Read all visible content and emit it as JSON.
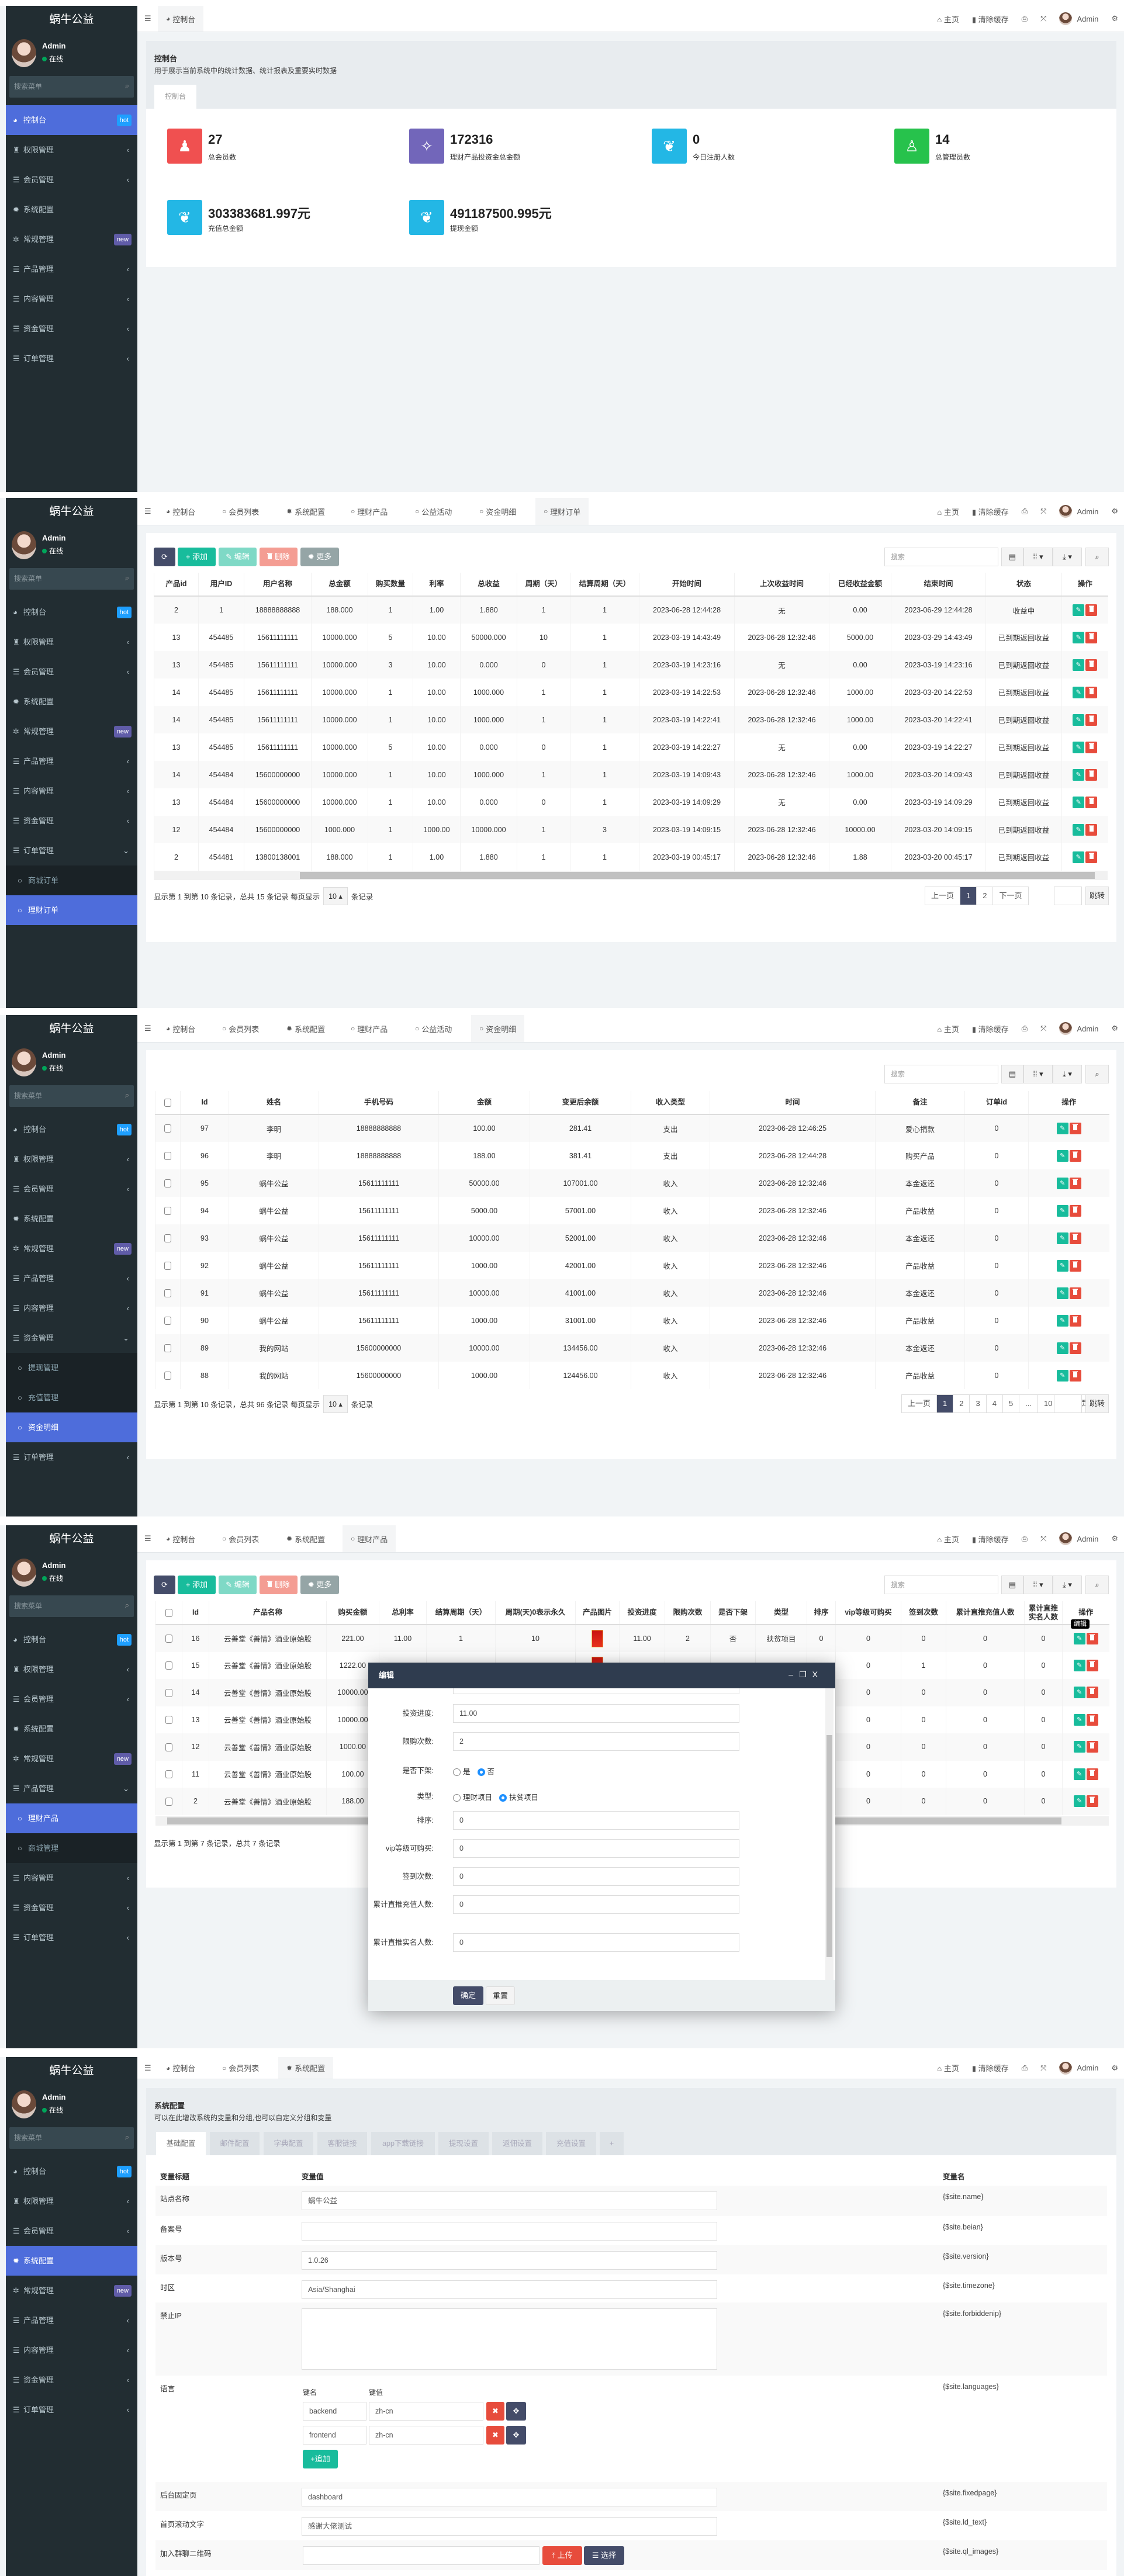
{
  "app": {
    "logo": "蜗牛公益",
    "user_name": "Admin",
    "user_status": "在线",
    "search_placeholder": "搜索菜单",
    "menu": [
      {
        "label": "控制台",
        "icon": "dashboard",
        "badge": "hot",
        "badge_color": "#1e9fff"
      },
      {
        "label": "权限管理",
        "icon": "group"
      },
      {
        "label": "会员管理",
        "icon": "list"
      },
      {
        "label": "系统配置",
        "icon": "gear",
        "nochev": true
      },
      {
        "label": "常规管理",
        "icon": "cogs",
        "badge": "new",
        "badge_color": "#605ca8"
      },
      {
        "label": "产品管理",
        "icon": "list",
        "children": [
          {
            "label": "理财产品"
          },
          {
            "label": "商城管理"
          }
        ]
      },
      {
        "label": "内容管理",
        "icon": "list"
      },
      {
        "label": "资金管理",
        "icon": "list",
        "children": [
          {
            "label": "提现管理"
          },
          {
            "label": "充值管理"
          },
          {
            "label": "资金明细"
          }
        ]
      },
      {
        "label": "订单管理",
        "icon": "list",
        "children": [
          {
            "label": "商城订单"
          },
          {
            "label": "理财订单"
          }
        ]
      }
    ],
    "tabs": [
      {
        "label": "控制台",
        "icon": "dashboard"
      },
      {
        "label": "会员列表",
        "icon": "circle"
      },
      {
        "label": "系统配置",
        "icon": "gear"
      },
      {
        "label": "理财产品",
        "icon": "circle"
      },
      {
        "label": "公益活动",
        "icon": "circle"
      },
      {
        "label": "资金明细",
        "icon": "circle"
      },
      {
        "label": "理财订单",
        "icon": "circle"
      }
    ],
    "topbar": {
      "home": "主页",
      "clear_cache": "清除缓存",
      "admin": "Admin"
    },
    "toolbar": {
      "add": "添加",
      "edit": "编辑",
      "delete": "删除",
      "more": "更多",
      "search_placeholder": "搜索"
    },
    "colors": {
      "sidebar": "#222d32",
      "active": "#4e6ddb",
      "primary": "#444c69",
      "success": "#18bc9c",
      "danger": "#e74c3c"
    }
  },
  "panels": [
    {
      "state": {
        "active": "0",
        "expanded": -1,
        "tabs": [
          0
        ],
        "active_tab": 0
      },
      "dashboard": {
        "title": "控制台",
        "desc": "用于展示当前系统中的统计数据、统计报表及重要实时数据",
        "tab": "控制台",
        "stats": [
          {
            "value": "27",
            "label": "总会员数",
            "color": "#f05050",
            "icon": "users"
          },
          {
            "value": "172316",
            "label": "理财产品投资金总金额",
            "color": "#7266ba",
            "icon": "magic"
          },
          {
            "value": "0",
            "label": "今日注册人数",
            "color": "#23b7e5",
            "icon": "leaf"
          },
          {
            "value": "14",
            "label": "总管理员数",
            "color": "#27c24c",
            "icon": "user"
          },
          {
            "value": "303383681.997元",
            "label": "充值总金额",
            "color": "#23b7e5",
            "icon": "leaf"
          },
          {
            "value": "491187500.995元",
            "label": "提现金额",
            "color": "#23b7e5",
            "icon": "leaf"
          }
        ]
      }
    },
    {
      "state": {
        "active": "8.1",
        "expanded": 8,
        "tabs": [
          0,
          1,
          2,
          3,
          4,
          5,
          6
        ],
        "active_tab": 6
      },
      "table": {
        "headers": [
          "产品id",
          "用户ID",
          "用户名称",
          "总金额",
          "购买数量",
          "利率",
          "总收益",
          "周期（天）",
          "结算周期（天）",
          "开始时间",
          "上次收益时间",
          "已经收益金额",
          "结束时间",
          "状态",
          "操作"
        ],
        "rows": [
          [
            "2",
            "1",
            "18888888888",
            "188.000",
            "1",
            "1.00",
            "1.880",
            "1",
            "1",
            "2023-06-28 12:44:28",
            "无",
            "0.00",
            "2023-06-29 12:44:28",
            "收益中"
          ],
          [
            "13",
            "454485",
            "15611111111",
            "10000.000",
            "5",
            "10.00",
            "50000.000",
            "10",
            "1",
            "2023-03-19 14:43:49",
            "2023-06-28 12:32:46",
            "5000.00",
            "2023-03-29 14:43:49",
            "已到期返回收益"
          ],
          [
            "13",
            "454485",
            "15611111111",
            "10000.000",
            "3",
            "10.00",
            "0.000",
            "0",
            "1",
            "2023-03-19 14:23:16",
            "无",
            "0.00",
            "2023-03-19 14:23:16",
            "已到期返回收益"
          ],
          [
            "14",
            "454485",
            "15611111111",
            "10000.000",
            "1",
            "10.00",
            "1000.000",
            "1",
            "1",
            "2023-03-19 14:22:53",
            "2023-06-28 12:32:46",
            "1000.00",
            "2023-03-20 14:22:53",
            "已到期返回收益"
          ],
          [
            "14",
            "454485",
            "15611111111",
            "10000.000",
            "1",
            "10.00",
            "1000.000",
            "1",
            "1",
            "2023-03-19 14:22:41",
            "2023-06-28 12:32:46",
            "1000.00",
            "2023-03-20 14:22:41",
            "已到期返回收益"
          ],
          [
            "13",
            "454485",
            "15611111111",
            "10000.000",
            "5",
            "10.00",
            "0.000",
            "0",
            "1",
            "2023-03-19 14:22:27",
            "无",
            "0.00",
            "2023-03-19 14:22:27",
            "已到期返回收益"
          ],
          [
            "14",
            "454484",
            "15600000000",
            "10000.000",
            "1",
            "10.00",
            "1000.000",
            "1",
            "1",
            "2023-03-19 14:09:43",
            "2023-06-28 12:32:46",
            "1000.00",
            "2023-03-20 14:09:43",
            "已到期返回收益"
          ],
          [
            "13",
            "454484",
            "15600000000",
            "10000.000",
            "1",
            "10.00",
            "0.000",
            "0",
            "1",
            "2023-03-19 14:09:29",
            "无",
            "0.00",
            "2023-03-19 14:09:29",
            "已到期返回收益"
          ],
          [
            "12",
            "454484",
            "15600000000",
            "1000.000",
            "1",
            "1000.00",
            "10000.000",
            "1",
            "3",
            "2023-03-19 14:09:15",
            "2023-06-28 12:32:46",
            "10000.00",
            "2023-03-20 14:09:15",
            "已到期返回收益"
          ],
          [
            "2",
            "454481",
            "13800138001",
            "188.000",
            "1",
            "1.00",
            "1.880",
            "1",
            "1",
            "2023-03-19 00:45:17",
            "2023-06-28 12:32:46",
            "1.88",
            "2023-03-20 00:45:17",
            "已到期返回收益"
          ]
        ]
      },
      "pagination": {
        "info": "显示第 1 到第 10 条记录，总共 15 条记录 每页显示",
        "page_size": "10 ▴",
        "suffix": "条记录",
        "pages": [
          "上一页",
          "1",
          "2",
          "下一页"
        ],
        "current": "1",
        "jump": "跳转"
      }
    },
    {
      "state": {
        "active": "7.2",
        "expanded": 7,
        "tabs": [
          0,
          1,
          2,
          3,
          4,
          5
        ],
        "active_tab": 5
      },
      "table": {
        "headers": [
          "Id",
          "姓名",
          "手机号码",
          "金额",
          "变更后余额",
          "收入类型",
          "时间",
          "备注",
          "订单id",
          "操作"
        ],
        "rows": [
          [
            "97",
            "李明",
            "18888888888",
            "100.00",
            "281.41",
            "支出",
            "2023-06-28 12:46:25",
            "爱心捐款",
            "0"
          ],
          [
            "96",
            "李明",
            "18888888888",
            "188.00",
            "381.41",
            "支出",
            "2023-06-28 12:44:28",
            "购买产品",
            "0"
          ],
          [
            "95",
            "蜗牛公益",
            "15611111111",
            "50000.00",
            "107001.00",
            "收入",
            "2023-06-28 12:32:46",
            "本金返还",
            "0"
          ],
          [
            "94",
            "蜗牛公益",
            "15611111111",
            "5000.00",
            "57001.00",
            "收入",
            "2023-06-28 12:32:46",
            "产品收益",
            "0"
          ],
          [
            "93",
            "蜗牛公益",
            "15611111111",
            "10000.00",
            "52001.00",
            "收入",
            "2023-06-28 12:32:46",
            "本金返还",
            "0"
          ],
          [
            "92",
            "蜗牛公益",
            "15611111111",
            "1000.00",
            "42001.00",
            "收入",
            "2023-06-28 12:32:46",
            "产品收益",
            "0"
          ],
          [
            "91",
            "蜗牛公益",
            "15611111111",
            "10000.00",
            "41001.00",
            "收入",
            "2023-06-28 12:32:46",
            "本金返还",
            "0"
          ],
          [
            "90",
            "蜗牛公益",
            "15611111111",
            "1000.00",
            "31001.00",
            "收入",
            "2023-06-28 12:32:46",
            "产品收益",
            "0"
          ],
          [
            "89",
            "我的网站",
            "15600000000",
            "10000.00",
            "134456.00",
            "收入",
            "2023-06-28 12:32:46",
            "本金返还",
            "0"
          ],
          [
            "88",
            "我的网站",
            "15600000000",
            "1000.00",
            "124456.00",
            "收入",
            "2023-06-28 12:32:46",
            "产品收益",
            "0"
          ]
        ]
      },
      "pagination": {
        "info": "显示第 1 到第 10 条记录，总共 96 条记录 每页显示",
        "page_size": "10 ▴",
        "suffix": "条记录",
        "pages": [
          "上一页",
          "1",
          "2",
          "3",
          "4",
          "5",
          "...",
          "10",
          "下一页"
        ],
        "current": "1",
        "jump": "跳转"
      }
    },
    {
      "state": {
        "active": "5.0",
        "expanded": 5,
        "tabs": [
          0,
          1,
          2,
          3
        ],
        "active_tab": 3
      },
      "table": {
        "headers": [
          "Id",
          "产品名称",
          "购买金额",
          "总利率",
          "结算周期（天）",
          "周期(天)0表示永久",
          "产品图片",
          "投资进度",
          "限购次数",
          "是否下架",
          "类型",
          "排序",
          "vip等级可购买",
          "签到次数",
          "累计直推充值人数",
          "累计直推实名人数",
          "操作"
        ],
        "rows": [
          [
            "16",
            "云善堂《善情》酒业原始股",
            "221.00",
            "11.00",
            "1",
            "10",
            "",
            "11.00",
            "2",
            "否",
            "扶贫项目",
            "0",
            "0",
            "0",
            "0",
            "0"
          ],
          [
            "15",
            "云善堂《善情》酒业原始股",
            "1222.00",
            "",
            "",
            "",
            "",
            "",
            "",
            "",
            "",
            "",
            "0",
            "1",
            "0",
            "0"
          ],
          [
            "14",
            "云善堂《善情》酒业原始股",
            "10000.00",
            "",
            "",
            "",
            "",
            "",
            "",
            "",
            "",
            "",
            "0",
            "0",
            "0",
            "0"
          ],
          [
            "13",
            "云善堂《善情》酒业原始股",
            "10000.00",
            "",
            "",
            "",
            "",
            "",
            "",
            "",
            "",
            "",
            "0",
            "0",
            "0",
            "0"
          ],
          [
            "12",
            "云善堂《善情》酒业原始股",
            "1000.00",
            "",
            "",
            "",
            "",
            "",
            "",
            "",
            "",
            "",
            "0",
            "0",
            "0",
            "0"
          ],
          [
            "11",
            "云善堂《善情》酒业原始股",
            "100.00",
            "",
            "",
            "",
            "",
            "",
            "",
            "",
            "",
            "",
            "0",
            "0",
            "0",
            "0"
          ],
          [
            "2",
            "云善堂《善情》酒业原始股",
            "188.00",
            "",
            "",
            "",
            "",
            "",
            "",
            "",
            "",
            "",
            "0",
            "0",
            "0",
            "0"
          ]
        ]
      },
      "footer": "显示第 1 到第 7 条记录，总共 7 条记录",
      "tooltip": "编辑",
      "modal": {
        "title": "编辑",
        "fields": [
          {
            "label": "投资进度:",
            "value": "11.00"
          },
          {
            "label": "限购次数:",
            "value": "2"
          },
          {
            "label": "是否下架:",
            "options": [
              "是",
              "否"
            ],
            "selected": 1
          },
          {
            "label": "类型:",
            "options": [
              "理财项目",
              "扶贫项目"
            ],
            "selected": 1
          },
          {
            "label": "排序:",
            "value": "0"
          },
          {
            "label": "vip等级可购买:",
            "value": "0"
          },
          {
            "label": "签到次数:",
            "value": "0"
          },
          {
            "label": "累计直推充值人数:",
            "value": "0"
          },
          {
            "label": "累计直推实名人数:",
            "value": "0"
          }
        ],
        "confirm": "确定",
        "reset": "重置"
      }
    },
    {
      "state": {
        "active": "3",
        "expanded": -1,
        "tabs": [
          0,
          1,
          2
        ],
        "active_tab": 2
      },
      "config": {
        "title": "系统配置",
        "desc": "可以在此增改系统的变量和分组,也可以自定义分组和变量",
        "tabs": [
          "基础配置",
          "邮件配置",
          "字典配置",
          "客服链接",
          "app下载链接",
          "提现设置",
          "返佣设置",
          "充值设置",
          "+"
        ],
        "headers": [
          "变量标题",
          "变量值",
          "变量名"
        ],
        "rows": [
          {
            "title": "站点名称",
            "value": "蜗牛公益",
            "var": "{$site.name}"
          },
          {
            "title": "备案号",
            "value": "",
            "var": "{$site.beian}"
          },
          {
            "title": "版本号",
            "value": "1.0.26",
            "var": "{$site.version}"
          },
          {
            "title": "时区",
            "value": "Asia/Shanghai",
            "var": "{$site.timezone}"
          },
          {
            "title": "禁止IP",
            "value": "",
            "var": "{$site.forbiddenip}"
          },
          {
            "title": "语言",
            "var": "{$site.languages}",
            "kv_headers": [
              "键名",
              "键值"
            ],
            "kv": [
              [
                "backend",
                "zh-cn"
              ],
              [
                "frontend",
                "zh-cn"
              ]
            ],
            "append": "追加"
          },
          {
            "title": "后台固定页",
            "value": "dashboard",
            "var": "{$site.fixedpage}"
          },
          {
            "title": "首页滚动文字",
            "value": "感谢大佬测试",
            "var": "{$site.ld_text}"
          },
          {
            "title": "加入群聊二维码",
            "value": "",
            "var": "{$site.ql_images}",
            "upload": "上传",
            "choose": "选择"
          }
        ]
      }
    }
  ]
}
